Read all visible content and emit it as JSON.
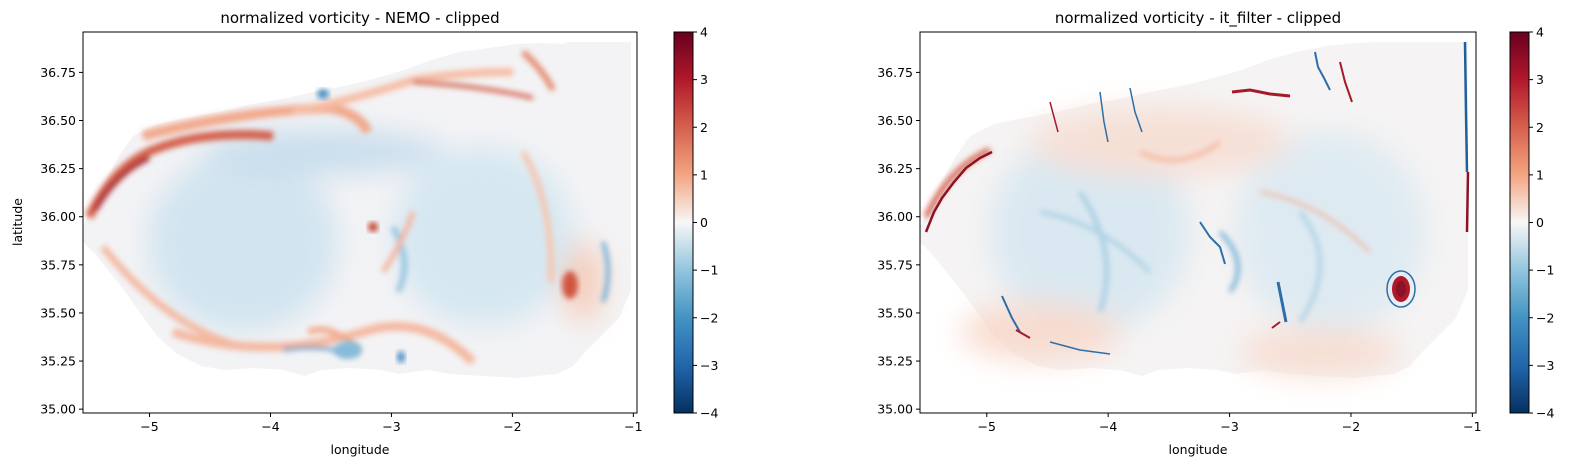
{
  "chart_data": [
    {
      "type": "heatmap",
      "title": "normalized vorticity - NEMO - clipped",
      "xlabel": "longitude",
      "ylabel": "latitude",
      "xlim": [
        -5.55,
        -0.97
      ],
      "ylim": [
        34.98,
        36.96
      ],
      "xticks": [
        -5,
        -4,
        -3,
        -2,
        -1
      ],
      "xtick_labels": [
        "−5",
        "−4",
        "−3",
        "−2",
        "−1"
      ],
      "yticks": [
        35.0,
        35.25,
        35.5,
        35.75,
        36.0,
        36.25,
        36.5,
        36.75
      ],
      "ytick_labels": [
        "35.00",
        "35.25",
        "35.50",
        "35.75",
        "36.00",
        "36.25",
        "36.50",
        "36.75"
      ],
      "colorbar": {
        "colormap": "RdBu_r",
        "vmin": -4,
        "vmax": 4,
        "ticks": [
          -4,
          -3,
          -2,
          -1,
          0,
          1,
          2,
          3,
          4
        ],
        "tick_labels": [
          "−4",
          "−3",
          "−2",
          "−1",
          "0",
          "1",
          "2",
          "3",
          "4"
        ],
        "color_low": "#053061",
        "color_mid": "#f7f7f7",
        "color_high": "#67001f"
      },
      "grid": false
    },
    {
      "type": "heatmap",
      "title": "normalized vorticity - it_filter - clipped",
      "xlabel": "longitude",
      "ylabel": "",
      "xlim": [
        -5.55,
        -0.97
      ],
      "ylim": [
        34.98,
        36.96
      ],
      "xticks": [
        -5,
        -4,
        -3,
        -2,
        -1
      ],
      "xtick_labels": [
        "−5",
        "−4",
        "−3",
        "−2",
        "−1"
      ],
      "yticks": [
        35.0,
        35.25,
        35.5,
        35.75,
        36.0,
        36.25,
        36.5,
        36.75
      ],
      "ytick_labels": [
        "35.00",
        "35.25",
        "35.50",
        "35.75",
        "36.00",
        "36.25",
        "36.50",
        "36.75"
      ],
      "colorbar": {
        "colormap": "RdBu_r",
        "vmin": -4,
        "vmax": 4,
        "ticks": [
          -4,
          -3,
          -2,
          -1,
          0,
          1,
          2,
          3,
          4
        ],
        "tick_labels": [
          "−4",
          "−3",
          "−2",
          "−1",
          "0",
          "1",
          "2",
          "3",
          "4"
        ],
        "color_low": "#053061",
        "color_mid": "#f7f7f7",
        "color_high": "#67001f"
      },
      "grid": false
    }
  ]
}
